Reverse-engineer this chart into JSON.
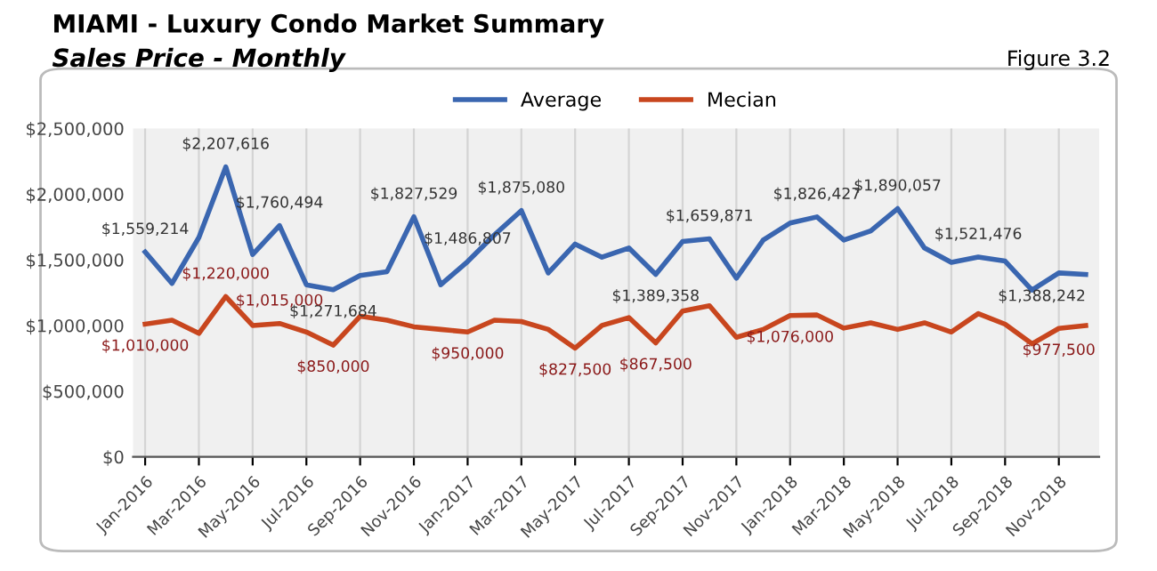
{
  "chart_data": {
    "type": "line",
    "title": "MIAMI - Luxury Condo Market Summary",
    "subtitle": "Sales Price - Monthly",
    "annotations": [
      "Figure 3.2"
    ],
    "categories": [
      "Jan-2016",
      null,
      "Mar-2016",
      null,
      "May-2016",
      null,
      "Jul-2016",
      null,
      "Sep-2016",
      null,
      "Nov-2016",
      null,
      "Jan-2017",
      null,
      "Mar-2017",
      null,
      "May-2017",
      null,
      "Jul-2017",
      null,
      "Sep-2017",
      null,
      "Nov-2017",
      null,
      "Jan-2018",
      null,
      "Mar-2018",
      null,
      "May-2018",
      null,
      "Jul-2018",
      null,
      "Sep-2018",
      null,
      "Nov-2018",
      null
    ],
    "series": [
      {
        "name": "Average",
        "color": "#3a66b0",
        "values": [
          1559214,
          1320000,
          1670000,
          2207616,
          1540000,
          1760494,
          1310000,
          1271684,
          1380000,
          1410000,
          1827529,
          1310000,
          1486807,
          1690000,
          1875080,
          1400000,
          1620000,
          1520000,
          1590000,
          1389358,
          1640000,
          1659871,
          1360000,
          1650000,
          1780000,
          1826427,
          1650000,
          1720000,
          1890057,
          1590000,
          1480000,
          1521476,
          1490000,
          1270000,
          1400000,
          1388242
        ],
        "value_labels": [
          "$1,559,214",
          null,
          null,
          "$2,207,616",
          null,
          "$1,760,494",
          null,
          "$1,271,684",
          null,
          null,
          "$1,827,529",
          null,
          "$1,486,807",
          null,
          "$1,875,080",
          null,
          null,
          null,
          null,
          "$1,389,358",
          null,
          "$1,659,871",
          null,
          null,
          null,
          "$1,826,427",
          null,
          null,
          "$1,890,057",
          null,
          null,
          "$1,521,476",
          null,
          null,
          null,
          "$1,388,242"
        ]
      },
      {
        "name": "Mecian",
        "color": "#c8461e",
        "values": [
          1010000,
          1040000,
          940000,
          1220000,
          1000000,
          1015000,
          950000,
          850000,
          1070000,
          1040000,
          990000,
          970000,
          950000,
          1040000,
          1030000,
          970000,
          827500,
          1000000,
          1060000,
          867500,
          1110000,
          1150000,
          910000,
          970000,
          1076000,
          1080000,
          980000,
          1020000,
          970000,
          1020000,
          950000,
          1090000,
          1010000,
          860000,
          977500,
          1000000
        ],
        "value_labels": [
          "$1,010,000",
          null,
          null,
          "$1,220,000",
          null,
          "$1,015,000",
          null,
          "$850,000",
          null,
          null,
          null,
          null,
          "$950,000",
          null,
          null,
          null,
          "$827,500",
          null,
          null,
          "$867,500",
          null,
          null,
          null,
          null,
          "$1,076,000",
          null,
          null,
          null,
          null,
          null,
          null,
          null,
          null,
          null,
          "$977,500",
          null
        ]
      }
    ],
    "ylim": [
      0,
      2500000
    ],
    "yticks": [
      {
        "value": 0,
        "label": "$0"
      },
      {
        "value": 500000,
        "label": "$500,000"
      },
      {
        "value": 1000000,
        "label": "$1,000,000"
      },
      {
        "value": 1500000,
        "label": "$1,500,000"
      },
      {
        "value": 2000000,
        "label": "$2,000,000"
      },
      {
        "value": 2500000,
        "label": "$2,500,000"
      }
    ],
    "grid": "x",
    "legend": "top",
    "marker": "none",
    "line_style": "solid"
  }
}
